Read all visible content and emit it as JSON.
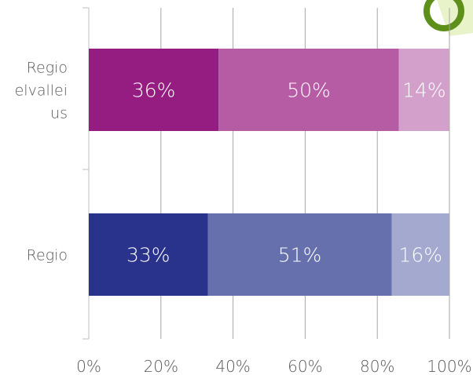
{
  "chart_data": {
    "type": "bar",
    "orientation": "horizontal",
    "stacked": true,
    "categories": [
      "Regio\nelvallei\nus",
      "Regio"
    ],
    "series": [
      {
        "values": [
          36,
          33
        ]
      },
      {
        "values": [
          50,
          51
        ]
      },
      {
        "values": [
          14,
          16
        ]
      }
    ],
    "data_labels": [
      [
        "36%",
        "50%",
        "14%"
      ],
      [
        "33%",
        "51%",
        "16%"
      ]
    ],
    "colors": [
      [
        "#951c81",
        "#b55ca5",
        "#d3a0cb"
      ],
      [
        "#29338c",
        "#6670ad",
        "#a4a9cf"
      ]
    ],
    "x_ticks": [
      "0%",
      "20%",
      "40%",
      "60%",
      "80%",
      "100%"
    ],
    "xlim": [
      0,
      100
    ],
    "grid": true,
    "legend": "none"
  },
  "decoration": {
    "ring_color": "#5e8f1b",
    "leaf_color": "#e9f3c9"
  }
}
